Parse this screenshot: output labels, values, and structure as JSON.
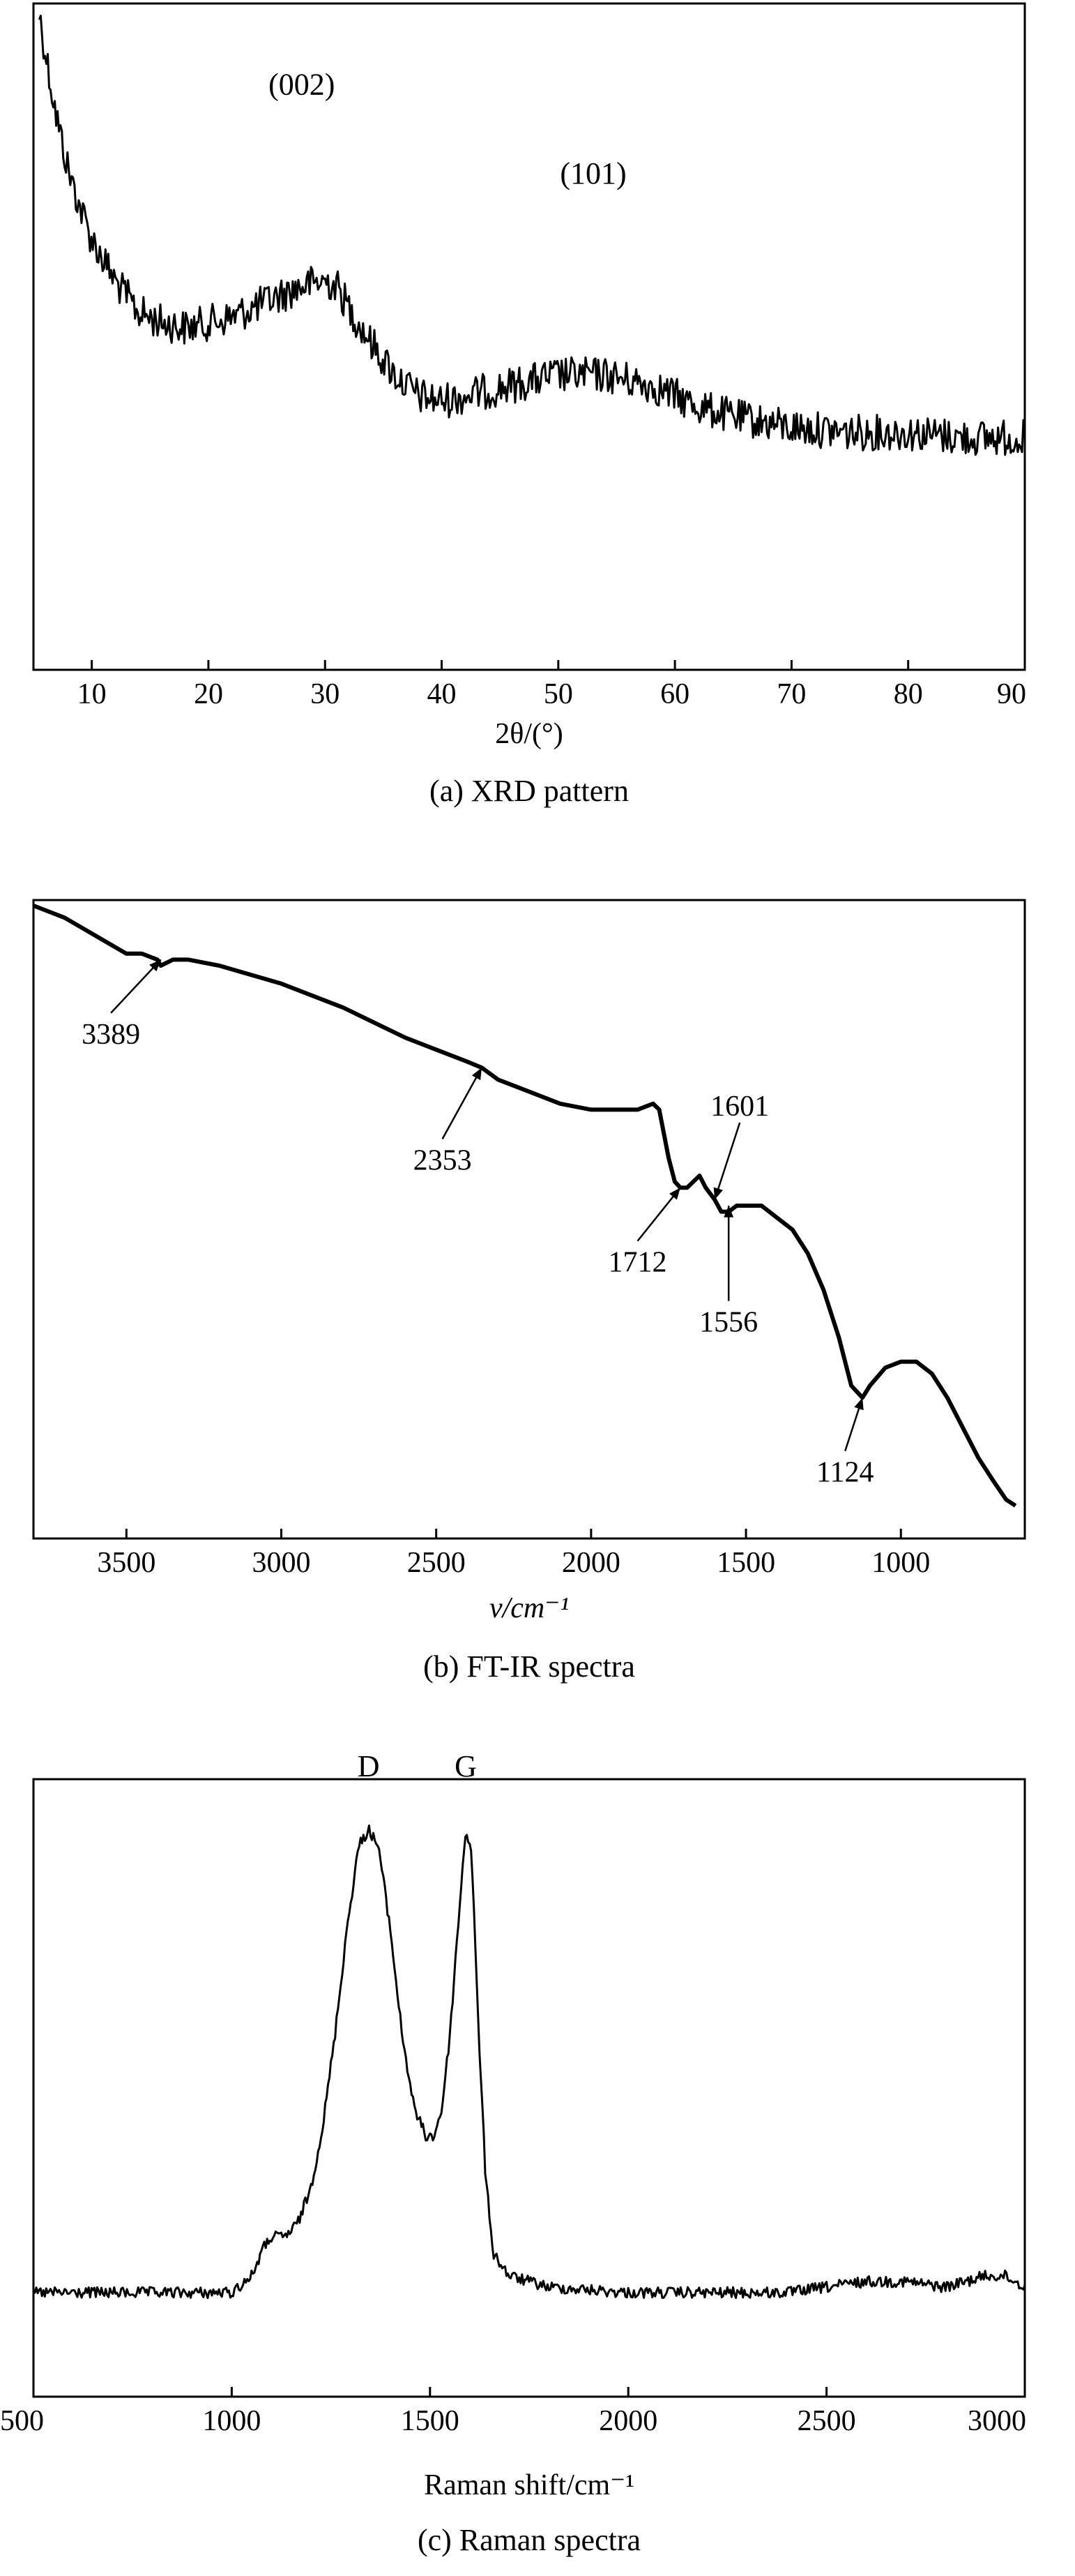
{
  "chart_data": [
    {
      "type": "line",
      "caption": "(a) XRD pattern",
      "xlabel": "2θ/(°)",
      "ylabel": "",
      "xlim": [
        5,
        90
      ],
      "ylim": [
        0,
        1
      ],
      "xticks": [
        10,
        20,
        30,
        40,
        50,
        60,
        70,
        80,
        90
      ],
      "y_ticks_shown": false,
      "grid": false,
      "noise": "heavy",
      "annotations": [
        {
          "text": "(002)",
          "x": 28,
          "y": 0.83
        },
        {
          "text": "(101)",
          "x": 53,
          "y": 0.66
        }
      ],
      "series": [
        {
          "x": [
            5.5,
            6,
            7,
            8,
            9,
            10,
            12,
            14,
            16,
            18,
            20,
            22,
            24,
            26,
            28,
            30,
            31,
            32,
            34,
            36,
            38,
            40,
            42,
            44,
            46,
            48,
            50,
            52,
            54,
            56,
            58,
            60,
            62,
            65,
            70,
            75,
            80,
            85,
            90
          ],
          "y": [
            1.0,
            0.93,
            0.8,
            0.7,
            0.63,
            0.57,
            0.49,
            0.43,
            0.41,
            0.4,
            0.41,
            0.42,
            0.44,
            0.46,
            0.48,
            0.49,
            0.48,
            0.44,
            0.37,
            0.31,
            0.27,
            0.26,
            0.27,
            0.28,
            0.29,
            0.3,
            0.31,
            0.31,
            0.31,
            0.3,
            0.29,
            0.27,
            0.25,
            0.23,
            0.21,
            0.2,
            0.2,
            0.19,
            0.19
          ]
        }
      ]
    },
    {
      "type": "line",
      "caption": "(b) FT-IR spectra",
      "xlabel": "ν/cm⁻¹",
      "ylabel": "",
      "xlim": [
        3800,
        600
      ],
      "x_reversed": true,
      "ylim": [
        0,
        1
      ],
      "xticks": [
        3500,
        3000,
        2500,
        2000,
        1500,
        1000
      ],
      "y_ticks_shown": false,
      "grid": false,
      "noise": "none",
      "annotations": [
        {
          "text": "3389",
          "x": 3389,
          "y": 0.91,
          "label_x": 3550,
          "label_y": 0.77
        },
        {
          "text": "2353",
          "x": 2353,
          "y": 0.73,
          "label_x": 2480,
          "label_y": 0.56
        },
        {
          "text": "1712",
          "x": 1712,
          "y": 0.53,
          "label_x": 1850,
          "label_y": 0.39
        },
        {
          "text": "1601",
          "x": 1601,
          "y": 0.51,
          "label_x": 1520,
          "label_y": 0.65
        },
        {
          "text": "1556",
          "x": 1556,
          "y": 0.5,
          "label_x": 1556,
          "label_y": 0.29
        },
        {
          "text": "1124",
          "x": 1124,
          "y": 0.18,
          "label_x": 1180,
          "label_y": 0.04
        }
      ],
      "series": [
        {
          "x": [
            3800,
            3700,
            3600,
            3500,
            3450,
            3400,
            3389,
            3350,
            3300,
            3200,
            3000,
            2800,
            2600,
            2500,
            2400,
            2353,
            2300,
            2200,
            2100,
            2000,
            1900,
            1850,
            1800,
            1780,
            1750,
            1730,
            1712,
            1690,
            1670,
            1650,
            1630,
            1601,
            1580,
            1556,
            1530,
            1500,
            1450,
            1400,
            1350,
            1300,
            1250,
            1200,
            1160,
            1124,
            1100,
            1050,
            1000,
            950,
            900,
            850,
            800,
            750,
            700,
            660,
            630
          ],
          "y": [
            1.0,
            0.98,
            0.95,
            0.92,
            0.92,
            0.91,
            0.9,
            0.91,
            0.91,
            0.9,
            0.87,
            0.83,
            0.78,
            0.76,
            0.74,
            0.73,
            0.71,
            0.69,
            0.67,
            0.66,
            0.66,
            0.66,
            0.67,
            0.66,
            0.58,
            0.54,
            0.53,
            0.53,
            0.54,
            0.55,
            0.53,
            0.51,
            0.49,
            0.49,
            0.5,
            0.5,
            0.5,
            0.48,
            0.46,
            0.42,
            0.36,
            0.28,
            0.2,
            0.18,
            0.2,
            0.23,
            0.24,
            0.24,
            0.22,
            0.18,
            0.13,
            0.08,
            0.04,
            0.01,
            0.0
          ]
        }
      ]
    },
    {
      "type": "line",
      "caption": "(c) Raman spectra",
      "xlabel": "Raman shift/cm⁻¹",
      "ylabel": "",
      "xlim": [
        500,
        3000
      ],
      "ylim": [
        0,
        1
      ],
      "xticks": [
        500,
        1000,
        1500,
        2000,
        2500,
        3000
      ],
      "y_ticks_shown": false,
      "grid": false,
      "noise": "moderate",
      "annotations": [
        {
          "text": "D",
          "x": 1345,
          "y": 1.0
        },
        {
          "text": "G",
          "x": 1590,
          "y": 1.0
        }
      ],
      "series": [
        {
          "x": [
            500,
            600,
            700,
            800,
            900,
            1000,
            1050,
            1080,
            1100,
            1130,
            1150,
            1170,
            1200,
            1230,
            1260,
            1290,
            1320,
            1345,
            1370,
            1400,
            1430,
            1460,
            1490,
            1510,
            1530,
            1550,
            1570,
            1590,
            1605,
            1620,
            1640,
            1660,
            1700,
            1800,
            2000,
            2200,
            2400,
            2500,
            2600,
            2700,
            2800,
            2900,
            2950,
            3000
          ],
          "y": [
            0.09,
            0.09,
            0.09,
            0.09,
            0.09,
            0.09,
            0.12,
            0.17,
            0.19,
            0.19,
            0.2,
            0.22,
            0.28,
            0.39,
            0.55,
            0.74,
            0.89,
            0.92,
            0.89,
            0.74,
            0.55,
            0.42,
            0.37,
            0.37,
            0.42,
            0.55,
            0.74,
            0.92,
            0.88,
            0.6,
            0.3,
            0.16,
            0.12,
            0.1,
            0.09,
            0.09,
            0.09,
            0.1,
            0.11,
            0.11,
            0.1,
            0.12,
            0.12,
            0.1
          ]
        }
      ]
    }
  ]
}
